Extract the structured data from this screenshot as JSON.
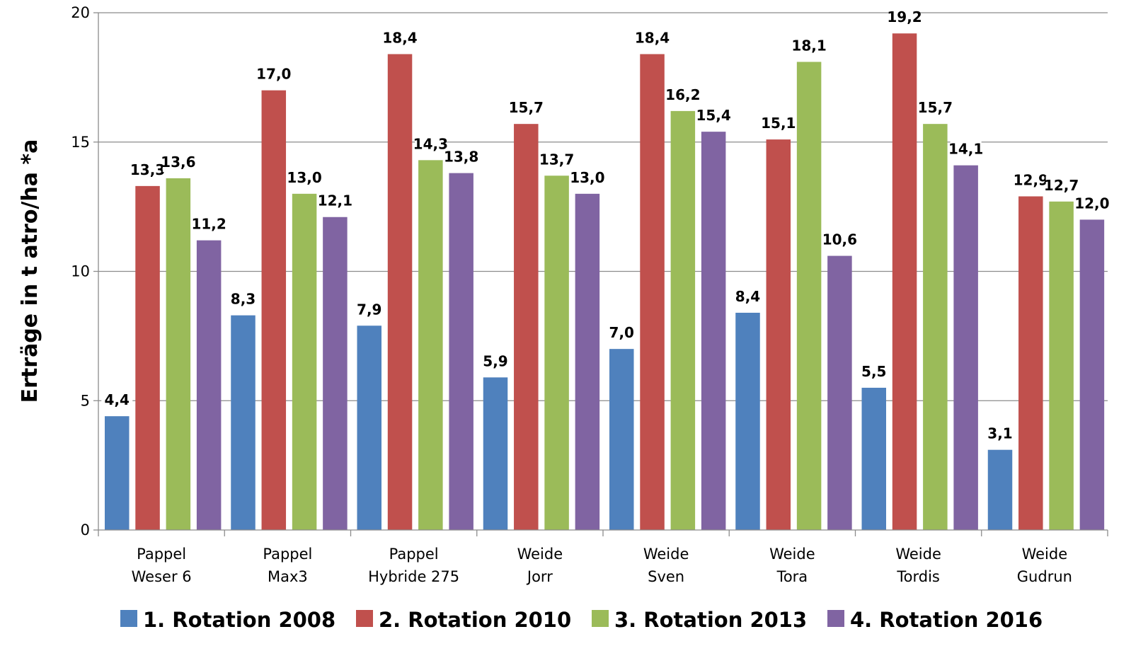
{
  "chart_data": {
    "type": "bar",
    "ylabel": "Erträge in t atro/ha *a",
    "xlabel": "",
    "ylim": [
      0,
      20
    ],
    "yticks": [
      "0",
      "5",
      "10",
      "15",
      "20"
    ],
    "grid": true,
    "legend_position": "bottom",
    "categories": [
      [
        "Pappel",
        "Weser 6"
      ],
      [
        "Pappel",
        "Max3"
      ],
      [
        "Pappel",
        "Hybride 275"
      ],
      [
        "Weide",
        "Jorr"
      ],
      [
        "Weide",
        "Sven"
      ],
      [
        "Weide",
        "Tora"
      ],
      [
        "Weide",
        "Tordis"
      ],
      [
        "Weide",
        "Gudrun"
      ]
    ],
    "series": [
      {
        "name": "1. Rotation 2008",
        "color": "#4F81BD",
        "values": [
          4.4,
          8.3,
          7.9,
          5.9,
          7.0,
          8.4,
          5.5,
          3.1
        ],
        "labels": [
          "4,4",
          "8,3",
          "7,9",
          "5,9",
          "7,0",
          "8,4",
          "5,5",
          "3,1"
        ]
      },
      {
        "name": "2. Rotation 2010",
        "color": "#C0504D",
        "values": [
          13.3,
          17.0,
          18.4,
          15.7,
          18.4,
          15.1,
          19.2,
          12.9
        ],
        "labels": [
          "13,3",
          "17,0",
          "18,4",
          "15,7",
          "18,4",
          "15,1",
          "19,2",
          "12,9"
        ]
      },
      {
        "name": "3. Rotation 2013",
        "color": "#9BBB59",
        "values": [
          13.6,
          13.0,
          14.3,
          13.7,
          16.2,
          18.1,
          15.7,
          12.7
        ],
        "labels": [
          "13,6",
          "13,0",
          "14,3",
          "13,7",
          "16,2",
          "18,1",
          "15,7",
          "12,7"
        ]
      },
      {
        "name": "4. Rotation 2016",
        "color": "#8064A2",
        "values": [
          11.2,
          12.1,
          13.8,
          13.0,
          15.4,
          10.6,
          14.1,
          12.0
        ],
        "labels": [
          "11,2",
          "12,1",
          "13,8",
          "13,0",
          "15,4",
          "10,6",
          "14,1",
          "12,0"
        ]
      }
    ]
  }
}
